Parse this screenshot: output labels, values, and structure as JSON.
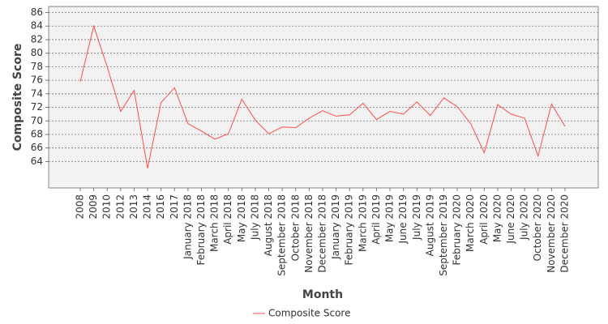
{
  "chart_data": {
    "type": "line",
    "x_label": "Month",
    "y_label": "Composite Score",
    "categories": [
      "2008",
      "2009",
      "2010",
      "2012",
      "2013",
      "2014",
      "2016",
      "2017",
      "January 2018",
      "February 2018",
      "March 2018",
      "April 2018",
      "May 2018",
      "July 2018",
      "August 2018",
      "September 2018",
      "October 2018",
      "November 2018",
      "December 2018",
      "January 2019",
      "February 2019",
      "March 2019",
      "April 2019",
      "May 2019",
      "June 2019",
      "July 2019",
      "August 2019",
      "September 2019",
      "February 2020",
      "March 2020",
      "April 2020",
      "May 2020",
      "June 2020",
      "July 2020",
      "October 2020",
      "November 2020",
      "December 2020"
    ],
    "series": [
      {
        "name": "Composite Score",
        "color": "#ff4d4d",
        "values": [
          75.8,
          84,
          78,
          71.4,
          74.5,
          63,
          72.7,
          74.9,
          69.6,
          68.5,
          67.3,
          68.1,
          73.2,
          70.1,
          68.1,
          69.1,
          69.0,
          70.4,
          71.5,
          70.7,
          70.9,
          72.6,
          70.2,
          71.4,
          71.0,
          72.8,
          70.8,
          73.4,
          72.1,
          69.6,
          65.3,
          72.4,
          71.0,
          70.4,
          64.8,
          72.5,
          69.2
        ]
      }
    ],
    "ylim": [
      60.1,
      86.9
    ],
    "yticks": [
      64,
      66,
      68,
      70,
      72,
      74,
      76,
      78,
      80,
      82,
      84,
      86
    ],
    "grid": true,
    "legend": "bottom"
  }
}
